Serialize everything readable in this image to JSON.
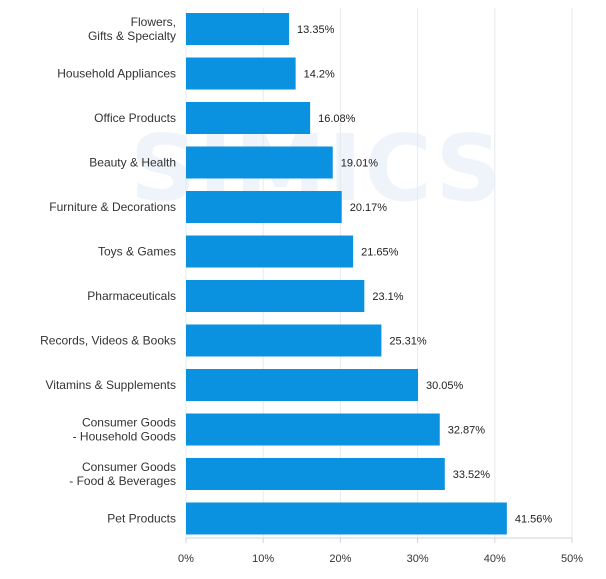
{
  "chart_data": {
    "type": "bar",
    "orientation": "horizontal",
    "categories": [
      [
        "Flowers,",
        "Gifts & Specialty"
      ],
      [
        "Household Appliances"
      ],
      [
        "Office Products"
      ],
      [
        "Beauty & Health"
      ],
      [
        "Furniture & Decorations"
      ],
      [
        "Toys & Games"
      ],
      [
        "Pharmaceuticals"
      ],
      [
        "Records, Videos & Books"
      ],
      [
        "Vitamins & Supplements"
      ],
      [
        "Consumer Goods",
        "- Household Goods"
      ],
      [
        "Consumer Goods",
        "- Food & Beverages"
      ],
      [
        "Pet Products"
      ]
    ],
    "values": [
      13.35,
      14.2,
      16.08,
      19.01,
      20.17,
      21.65,
      23.1,
      25.31,
      30.05,
      32.87,
      33.52,
      41.56
    ],
    "value_labels": [
      "13.35%",
      "14.2%",
      "16.08%",
      "19.01%",
      "20.17%",
      "21.65%",
      "23.1%",
      "25.31%",
      "30.05%",
      "32.87%",
      "33.52%",
      "41.56%"
    ],
    "xlim": [
      0,
      50
    ],
    "xticks": [
      0,
      10,
      20,
      30,
      40,
      50
    ],
    "xtick_labels": [
      "0%",
      "10%",
      "20%",
      "30%",
      "40%",
      "50%"
    ],
    "grid": true,
    "bar_color": "#0a91e0",
    "grid_color": "#e6e9ee",
    "watermark": "SIMICS"
  }
}
